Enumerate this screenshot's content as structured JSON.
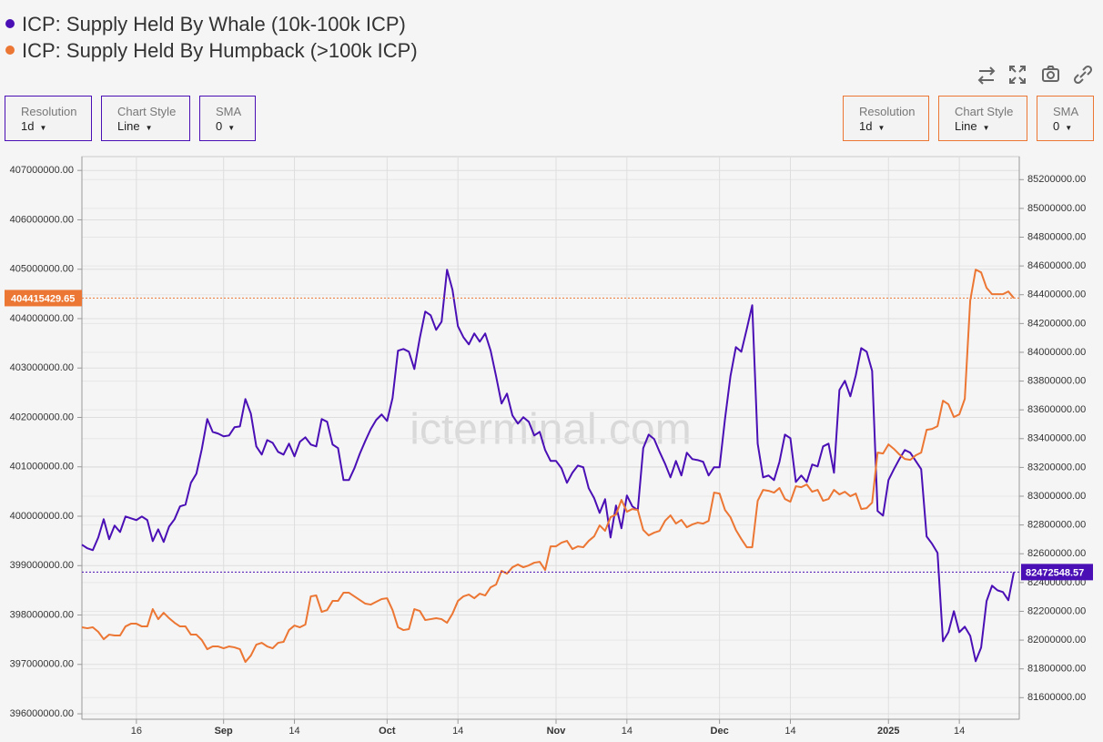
{
  "chart_data": {
    "type": "line",
    "watermark": "icterminal.com",
    "controls": {
      "left": [
        {
          "label": "Resolution",
          "value": "1d"
        },
        {
          "label": "Chart Style",
          "value": "Line"
        },
        {
          "label": "SMA",
          "value": "0"
        }
      ],
      "right": [
        {
          "label": "Resolution",
          "value": "1d"
        },
        {
          "label": "Chart Style",
          "value": "Line"
        },
        {
          "label": "SMA",
          "value": "0"
        }
      ]
    },
    "x": [
      "2024-08-06",
      "2024-08-07",
      "2024-08-08",
      "2024-08-09",
      "2024-08-10",
      "2024-08-11",
      "2024-08-12",
      "2024-08-13",
      "2024-08-14",
      "2024-08-15",
      "2024-08-16",
      "2024-08-17",
      "2024-08-18",
      "2024-08-19",
      "2024-08-20",
      "2024-08-21",
      "2024-08-22",
      "2024-08-23",
      "2024-08-24",
      "2024-08-25",
      "2024-08-26",
      "2024-08-27",
      "2024-08-28",
      "2024-08-29",
      "2024-08-30",
      "2024-08-31",
      "2024-09-01",
      "2024-09-02",
      "2024-09-03",
      "2024-09-04",
      "2024-09-05",
      "2024-09-06",
      "2024-09-07",
      "2024-09-08",
      "2024-09-09",
      "2024-09-10",
      "2024-09-11",
      "2024-09-12",
      "2024-09-13",
      "2024-09-14",
      "2024-09-15",
      "2024-09-16",
      "2024-09-17",
      "2024-09-18",
      "2024-09-19",
      "2024-09-20",
      "2024-09-21",
      "2024-09-22",
      "2024-09-23",
      "2024-09-24",
      "2024-09-25",
      "2024-09-26",
      "2024-09-27",
      "2024-09-28",
      "2024-09-29",
      "2024-09-30",
      "2024-10-01",
      "2024-10-02",
      "2024-10-03",
      "2024-10-04",
      "2024-10-05",
      "2024-10-06",
      "2024-10-07",
      "2024-10-08",
      "2024-10-09",
      "2024-10-10",
      "2024-10-11",
      "2024-10-12",
      "2024-10-13",
      "2024-10-14",
      "2024-10-15",
      "2024-10-16",
      "2024-10-17",
      "2024-10-18",
      "2024-10-19",
      "2024-10-20",
      "2024-10-21",
      "2024-10-22",
      "2024-10-23",
      "2024-10-24",
      "2024-10-25",
      "2024-10-26",
      "2024-10-27",
      "2024-10-28",
      "2024-10-29",
      "2024-10-30",
      "2024-10-31",
      "2024-11-01",
      "2024-11-02",
      "2024-11-03",
      "2024-11-04",
      "2024-11-05",
      "2024-11-06",
      "2024-11-07",
      "2024-11-08",
      "2024-11-09",
      "2024-11-10",
      "2024-11-11",
      "2024-11-12",
      "2024-11-13",
      "2024-11-14",
      "2024-11-15",
      "2024-11-16",
      "2024-11-17",
      "2024-11-18",
      "2024-11-19",
      "2024-11-20",
      "2024-11-21",
      "2024-11-22",
      "2024-11-23",
      "2024-11-24",
      "2024-11-25",
      "2024-11-26",
      "2024-11-27",
      "2024-11-28",
      "2024-11-29",
      "2024-11-30",
      "2024-12-01",
      "2024-12-02",
      "2024-12-03",
      "2024-12-04",
      "2024-12-05",
      "2024-12-06",
      "2024-12-07",
      "2024-12-08",
      "2024-12-09",
      "2024-12-10",
      "2024-12-11",
      "2024-12-12",
      "2024-12-13",
      "2024-12-14",
      "2024-12-15",
      "2024-12-16",
      "2024-12-17",
      "2024-12-18",
      "2024-12-19",
      "2024-12-20",
      "2024-12-21",
      "2024-12-22",
      "2024-12-23",
      "2024-12-24",
      "2024-12-25",
      "2024-12-26",
      "2024-12-27",
      "2024-12-28",
      "2024-12-29",
      "2024-12-30",
      "2024-12-31",
      "2025-01-01",
      "2025-01-02",
      "2025-01-03",
      "2025-01-04",
      "2025-01-05",
      "2025-01-06",
      "2025-01-07",
      "2025-01-08",
      "2025-01-09",
      "2025-01-10",
      "2025-01-11",
      "2025-01-12",
      "2025-01-13",
      "2025-01-14",
      "2025-01-15",
      "2025-01-16",
      "2025-01-17",
      "2025-01-18",
      "2025-01-19",
      "2025-01-20",
      "2025-01-21",
      "2025-01-22",
      "2025-01-23",
      "2025-01-24"
    ],
    "series": [
      {
        "name": "ICP: Supply Held By Whale (10k-100k ICP)",
        "color": "#4a0fb5",
        "axis": "y2",
        "values": [
          82663000,
          82638000,
          82625000,
          82713000,
          82840000,
          82701000,
          82796000,
          82751000,
          82859000,
          82846000,
          82834000,
          82859000,
          82834000,
          82688000,
          82770000,
          82682000,
          82789000,
          82840000,
          82929000,
          82941000,
          83093000,
          83156000,
          83327000,
          83536000,
          83447000,
          83435000,
          83416000,
          83422000,
          83479000,
          83485000,
          83675000,
          83574000,
          83346000,
          83289000,
          83390000,
          83371000,
          83308000,
          83289000,
          83365000,
          83277000,
          83378000,
          83409000,
          83359000,
          83346000,
          83536000,
          83517000,
          83359000,
          83334000,
          83112000,
          83112000,
          83194000,
          83296000,
          83384000,
          83466000,
          83530000,
          83568000,
          83523000,
          83682000,
          84011000,
          84023000,
          84004000,
          83884000,
          84099000,
          84283000,
          84257000,
          84156000,
          84213000,
          84574000,
          84434000,
          84181000,
          84105000,
          84055000,
          84131000,
          84074000,
          84131000,
          84011000,
          83833000,
          83644000,
          83713000,
          83561000,
          83504000,
          83549000,
          83517000,
          83422000,
          83447000,
          83321000,
          83245000,
          83245000,
          83194000,
          83093000,
          83163000,
          83213000,
          83201000,
          83055000,
          82986000,
          82884000,
          82979000,
          82713000,
          82935000,
          82777000,
          83005000,
          82929000,
          82903000,
          83334000,
          83428000,
          83397000,
          83308000,
          83226000,
          83131000,
          83245000,
          83144000,
          83302000,
          83258000,
          83251000,
          83239000,
          83144000,
          83201000,
          83201000,
          83536000,
          83833000,
          84036000,
          84004000,
          84162000,
          84327000,
          83365000,
          83131000,
          83144000,
          83112000,
          83239000,
          83428000,
          83403000,
          83099000,
          83144000,
          83099000,
          83220000,
          83207000,
          83346000,
          83365000,
          83163000,
          83738000,
          83802000,
          83694000,
          83840000,
          84029000,
          84004000,
          83871000,
          82897000,
          82865000,
          83112000,
          83188000,
          83258000,
          83321000,
          83302000,
          83245000,
          83188000,
          82720000,
          82669000,
          82606000,
          81992000,
          82055000,
          82201000,
          82055000,
          82093000,
          82030000,
          81853000,
          81948000,
          82271000,
          82378000,
          82346000,
          82334000,
          82277000,
          82472548.57
        ]
      },
      {
        "name": "ICP: Supply Held By Humpback (>100k ICP)",
        "color": "#ec7633",
        "axis": "y",
        "values": [
          397751000,
          397732000,
          397751000,
          397659000,
          397511000,
          397603000,
          397585000,
          397585000,
          397769000,
          397824000,
          397824000,
          397769000,
          397769000,
          398119000,
          397916000,
          398045000,
          397935000,
          397843000,
          397769000,
          397769000,
          397603000,
          397603000,
          397493000,
          397308000,
          397364000,
          397364000,
          397327000,
          397364000,
          397345000,
          397308000,
          397050000,
          397179000,
          397401000,
          397437000,
          397364000,
          397327000,
          397437000,
          397456000,
          397695000,
          397787000,
          397751000,
          397806000,
          398377000,
          398396000,
          398064000,
          398101000,
          398285000,
          398285000,
          398451000,
          398451000,
          398377000,
          398303000,
          398230000,
          398211000,
          398267000,
          398322000,
          398340000,
          398101000,
          397751000,
          397695000,
          397714000,
          398119000,
          398082000,
          397898000,
          397916000,
          397935000,
          397916000,
          397843000,
          398027000,
          398285000,
          398377000,
          398414000,
          398340000,
          398432000,
          398396000,
          398561000,
          398617000,
          398893000,
          398838000,
          398967000,
          399022000,
          398967000,
          399004000,
          399059000,
          399077000,
          398911000,
          399390000,
          399390000,
          399464000,
          399501000,
          399335000,
          399390000,
          399372000,
          399501000,
          399593000,
          399814000,
          399704000,
          399980000,
          400035000,
          400330000,
          400091000,
          400146000,
          400127000,
          399722000,
          399612000,
          399667000,
          399704000,
          399906000,
          400017000,
          399851000,
          399925000,
          399777000,
          399833000,
          399870000,
          399851000,
          399906000,
          400478000,
          400459000,
          400127000,
          399980000,
          399722000,
          399538000,
          399372000,
          399372000,
          400312000,
          400533000,
          400514000,
          400478000,
          400570000,
          400349000,
          400293000,
          400607000,
          400588000,
          400643000,
          400496000,
          400533000,
          400312000,
          400349000,
          400533000,
          400441000,
          400496000,
          400404000,
          400459000,
          400146000,
          400164000,
          400275000,
          401288000,
          401270000,
          401454000,
          401362000,
          401251000,
          401159000,
          401141000,
          401233000,
          401288000,
          401749000,
          401767000,
          401823000,
          402338000,
          402265000,
          402007000,
          402062000,
          402375000,
          404365000,
          404992000,
          404936000,
          404623000,
          404494000,
          404494000,
          404494000,
          404549000,
          404415429.65
        ]
      }
    ],
    "annotations": [
      {
        "text": "404415429.65",
        "value": 404415429.65,
        "axis": "y",
        "color": "#ec7633"
      },
      {
        "text": "82472548.57",
        "value": 82472548.57,
        "axis": "y2",
        "color": "#4a0fb5"
      }
    ],
    "xlim": [
      "2024-08-06",
      "2025-01-25"
    ],
    "xticks": [
      {
        "value": "2024-08-16",
        "label": "16"
      },
      {
        "value": "2024-09-01",
        "label": "Sep"
      },
      {
        "value": "2024-09-14",
        "label": "14"
      },
      {
        "value": "2024-10-01",
        "label": "Oct"
      },
      {
        "value": "2024-10-14",
        "label": "14"
      },
      {
        "value": "2024-11-01",
        "label": "Nov"
      },
      {
        "value": "2024-11-14",
        "label": "14"
      },
      {
        "value": "2024-12-01",
        "label": "Dec"
      },
      {
        "value": "2024-12-14",
        "label": "14"
      },
      {
        "value": "2025-01-01",
        "label": "2025"
      },
      {
        "value": "2025-01-14",
        "label": "14"
      }
    ],
    "ylim": [
      395890000,
      407280000
    ],
    "yticks": [
      {
        "value": 396000000,
        "label": "396000000.00"
      },
      {
        "value": 397000000,
        "label": "397000000.00"
      },
      {
        "value": 398000000,
        "label": "398000000.00"
      },
      {
        "value": 399000000,
        "label": "399000000.00"
      },
      {
        "value": 400000000,
        "label": "400000000.00"
      },
      {
        "value": 401000000,
        "label": "401000000.00"
      },
      {
        "value": 402000000,
        "label": "402000000.00"
      },
      {
        "value": 403000000,
        "label": "403000000.00"
      },
      {
        "value": 404000000,
        "label": "404000000.00"
      },
      {
        "value": 405000000,
        "label": "405000000.00"
      },
      {
        "value": 406000000,
        "label": "406000000.00"
      },
      {
        "value": 407000000,
        "label": "407000000.00"
      }
    ],
    "y2lim": [
      81450000,
      85360000
    ],
    "y2ticks": [
      {
        "value": 81600000,
        "label": "81600000.00"
      },
      {
        "value": 81800000,
        "label": "81800000.00"
      },
      {
        "value": 82000000,
        "label": "82000000.00"
      },
      {
        "value": 82200000,
        "label": "82200000.00"
      },
      {
        "value": 82400000,
        "label": "82400000.00"
      },
      {
        "value": 82600000,
        "label": "82600000.00"
      },
      {
        "value": 82800000,
        "label": "82800000.00"
      },
      {
        "value": 83000000,
        "label": "83000000.00"
      },
      {
        "value": 83200000,
        "label": "83200000.00"
      },
      {
        "value": 83400000,
        "label": "83400000.00"
      },
      {
        "value": 83600000,
        "label": "83600000.00"
      },
      {
        "value": 83800000,
        "label": "83800000.00"
      },
      {
        "value": 84000000,
        "label": "84000000.00"
      },
      {
        "value": 84200000,
        "label": "84200000.00"
      },
      {
        "value": 84400000,
        "label": "84400000.00"
      },
      {
        "value": 84600000,
        "label": "84600000.00"
      },
      {
        "value": 84800000,
        "label": "84800000.00"
      },
      {
        "value": 85000000,
        "label": "85000000.00"
      },
      {
        "value": 85200000,
        "label": "85200000.00"
      }
    ],
    "grid": true
  }
}
